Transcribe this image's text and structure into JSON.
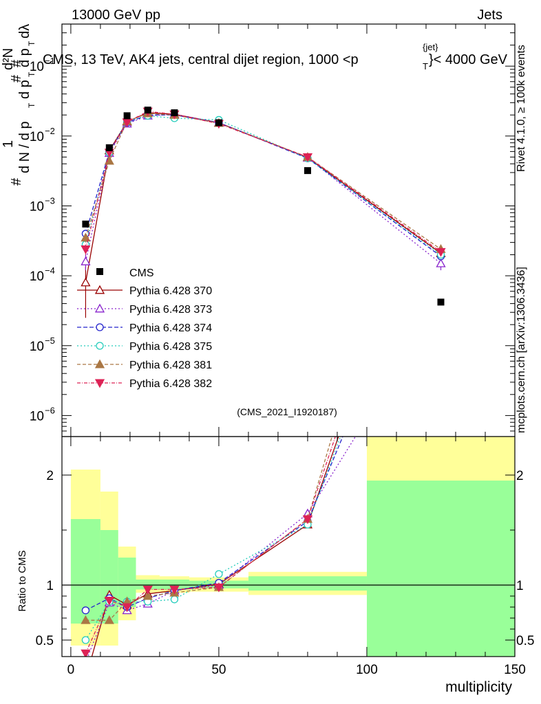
{
  "header": {
    "left": "13000 GeV pp",
    "right": "Jets",
    "plot_title": "CMS, 13 TeV, AK4 jets, central dijet region, 1000 <p",
    "plot_title_sup": "{jet}",
    "plot_title_sub": "T",
    "plot_title_end": "}< 4000 GeV"
  },
  "side": {
    "rivet": "Rivet 4.1.0, ≥ 100k events",
    "mcplots": "mcplots.cern.ch [arXiv:1306.3436]"
  },
  "watermark": "(CMS_2021_I1920187)",
  "ylabel_main": {
    "one": "1",
    "hash_a": "#",
    "hash_b": "#",
    "hash_c": "#",
    "dN": "d N / d p",
    "dNT": "T",
    "d2N": "d²N",
    "dpt": "d p",
    "dptT": "T",
    "dl": "dλ"
  },
  "ratio_ylabel": "Ratio to CMS",
  "xlabel": "multiplicity",
  "colors": {
    "band_outer": "#ffff99",
    "band_inner": "#99ff99",
    "cms": "#000000"
  },
  "chart_data": {
    "type": "line",
    "x_scale": "linear",
    "y_scale": "log",
    "xlim": [
      -3,
      150
    ],
    "ylim_main": [
      5e-07,
      0.4
    ],
    "ylim_ratio": [
      0.35,
      2.35
    ],
    "x_ticks": [
      0,
      50,
      100,
      150
    ],
    "y_ticks_main": [
      {
        "value": 1e-06,
        "base": "10",
        "exp": "−6"
      },
      {
        "value": 1e-05,
        "base": "10",
        "exp": "−5"
      },
      {
        "value": 0.0001,
        "base": "10",
        "exp": "−4"
      },
      {
        "value": 0.001,
        "base": "10",
        "exp": "−3"
      },
      {
        "value": 0.01,
        "base": "10",
        "exp": "−2"
      },
      {
        "value": 0.1,
        "base": "10",
        "exp": "−1"
      }
    ],
    "y_ticks_ratio": [
      {
        "value": 0.5,
        "label": "0.5"
      },
      {
        "value": 1,
        "label": "1"
      },
      {
        "value": 2,
        "label": "2"
      }
    ],
    "bin_edges": [
      0,
      10,
      16,
      22,
      30,
      40,
      60,
      100,
      150
    ],
    "x": [
      5,
      13,
      19,
      26,
      35,
      50,
      80,
      125
    ],
    "reference": {
      "name": "CMS",
      "values": [
        0.00055,
        0.0068,
        0.0195,
        0.0235,
        0.0215,
        0.0155,
        0.0032,
        4.2e-05
      ],
      "band_outer": [
        [
          0.45,
          2.05
        ],
        [
          0.45,
          1.85
        ],
        [
          0.68,
          1.35
        ],
        [
          0.93,
          1.09
        ],
        [
          0.93,
          1.08
        ],
        [
          0.94,
          1.07
        ],
        [
          0.91,
          1.12
        ],
        [
          0.35,
          2.35
        ]
      ],
      "band_inner": [
        [
          0.65,
          1.6
        ],
        [
          0.65,
          1.5
        ],
        [
          0.8,
          1.25
        ],
        [
          0.96,
          1.05
        ],
        [
          0.96,
          1.05
        ],
        [
          0.97,
          1.04
        ],
        [
          0.95,
          1.08
        ],
        [
          0.35,
          1.95
        ]
      ]
    },
    "series": [
      {
        "name": "Pythia 6.428 370",
        "color": "#990000",
        "dash": "",
        "marker": "triangle-open",
        "values": [
          8e-05,
          0.0062,
          0.016,
          0.0215,
          0.0205,
          0.0155,
          0.0049,
          0.00021
        ],
        "ratio": [
          0.15,
          0.91,
          0.82,
          0.92,
          0.95,
          1.01,
          1.55,
          5.0
        ],
        "err": [
          5.5e-05,
          0,
          0,
          0,
          0,
          0,
          0,
          0
        ]
      },
      {
        "name": "Pythia 6.428 373",
        "color": "#8822cc",
        "dash": "2,3",
        "marker": "triangle-open",
        "values": [
          0.00016,
          0.0057,
          0.015,
          0.0195,
          0.0205,
          0.0155,
          0.0049,
          0.00015
        ],
        "ratio": [
          0.3,
          0.84,
          0.77,
          0.83,
          0.95,
          1.0,
          1.65,
          3.6
        ],
        "err": [
          4e-05,
          0,
          0,
          0,
          0,
          0,
          0,
          3e-05
        ]
      },
      {
        "name": "Pythia 6.428 374",
        "color": "#2222cc",
        "dash": "6,3",
        "marker": "circle-open",
        "values": [
          0.0004,
          0.006,
          0.0155,
          0.02,
          0.02,
          0.0155,
          0.0048,
          0.00019
        ],
        "ratio": [
          0.77,
          0.88,
          0.8,
          0.88,
          0.95,
          1.02,
          1.58,
          4.5
        ],
        "err": [
          5e-05,
          0,
          0,
          0,
          0,
          0,
          0,
          0
        ]
      },
      {
        "name": "Pythia 6.428 375",
        "color": "#22ccbb",
        "dash": "2,3",
        "marker": "circle-open",
        "values": [
          0.00028,
          0.0058,
          0.0165,
          0.0195,
          0.018,
          0.017,
          0.0048,
          0.0002
        ],
        "ratio": [
          0.5,
          0.85,
          0.85,
          0.85,
          0.87,
          1.1,
          1.55,
          4.8
        ],
        "err": [
          4e-05,
          0,
          0,
          0,
          0,
          0,
          0,
          0
        ]
      },
      {
        "name": "Pythia 6.428 381",
        "color": "#aa7744",
        "dash": "5,3",
        "marker": "triangle-filled",
        "values": [
          0.00035,
          0.0044,
          0.0163,
          0.021,
          0.02,
          0.0153,
          0.005,
          0.00024
        ],
        "ratio": [
          0.68,
          0.68,
          0.85,
          0.9,
          0.93,
          0.98,
          1.6,
          5.7
        ],
        "err": [
          5e-05,
          0,
          0,
          0,
          0,
          0,
          0,
          4e-05
        ]
      },
      {
        "name": "Pythia 6.428 382",
        "color": "#dd2255",
        "dash": "5,2,1,2",
        "marker": "triangle-down-filled",
        "values": [
          0.00024,
          0.0058,
          0.0158,
          0.0225,
          0.0205,
          0.015,
          0.005,
          0.00022
        ],
        "ratio": [
          0.38,
          0.86,
          0.8,
          0.96,
          0.96,
          0.98,
          1.6,
          5.2
        ],
        "err": [
          4e-05,
          0,
          0,
          0,
          0,
          0,
          0,
          0
        ]
      }
    ]
  }
}
